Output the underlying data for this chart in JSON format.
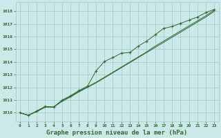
{
  "title": "Graphe pression niveau de la mer (hPa)",
  "background_color": "#cce8e8",
  "grid_color": "#99cccc",
  "line_color": "#2d6a2d",
  "marker_color": "#2d6a2d",
  "xlim": [
    -0.5,
    23.5
  ],
  "ylim": [
    1009.3,
    1018.7
  ],
  "yticks": [
    1010,
    1011,
    1012,
    1013,
    1014,
    1015,
    1016,
    1017,
    1018
  ],
  "xticks": [
    0,
    1,
    2,
    3,
    4,
    5,
    6,
    7,
    8,
    9,
    10,
    11,
    12,
    13,
    14,
    15,
    16,
    17,
    18,
    19,
    20,
    21,
    22,
    23
  ],
  "line1_y": [
    1010.0,
    1009.8,
    1010.15,
    1010.5,
    1010.45,
    1011.0,
    1011.35,
    1011.75,
    1012.1,
    1013.3,
    1014.05,
    1014.35,
    1014.7,
    1014.75,
    1015.25,
    1015.65,
    1016.15,
    1016.65,
    1016.8,
    1017.05,
    1017.3,
    1017.55,
    1017.9,
    1018.15
  ],
  "line2_y": [
    1010.0,
    1009.8,
    1010.1,
    1010.45,
    1010.45,
    1010.95,
    1011.3,
    1011.7,
    1012.05,
    1012.4,
    1012.8,
    1013.2,
    1013.6,
    1014.0,
    1014.4,
    1014.8,
    1015.25,
    1015.65,
    1016.05,
    1016.45,
    1016.85,
    1017.25,
    1017.65,
    1018.1
  ],
  "line3_y": [
    1010.0,
    1009.8,
    1010.1,
    1010.45,
    1010.45,
    1010.9,
    1011.25,
    1011.65,
    1012.0,
    1012.35,
    1012.75,
    1013.15,
    1013.55,
    1013.95,
    1014.35,
    1014.75,
    1015.15,
    1015.55,
    1015.95,
    1016.35,
    1016.75,
    1017.15,
    1017.55,
    1018.0
  ],
  "ylabel_fontsize": 5,
  "xlabel_fontsize": 6.5
}
